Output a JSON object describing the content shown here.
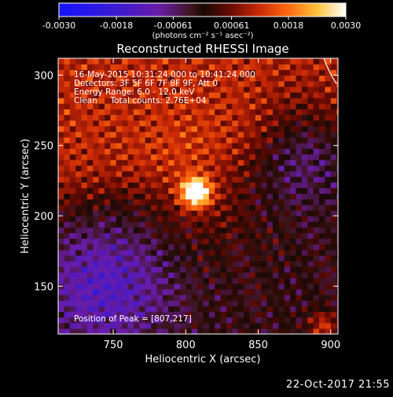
{
  "chart_data": {
    "type": "heatmap",
    "title": "Reconstructed RHESSI Image",
    "xlabel": "Heliocentric X (arcsec)",
    "ylabel": "Heliocentric Y (arcsec)",
    "xlim": [
      712,
      905
    ],
    "ylim": [
      116,
      312
    ],
    "x_ticks": [
      750,
      800,
      850,
      900
    ],
    "y_ticks": [
      150,
      200,
      250,
      300
    ],
    "colorbar": {
      "colormap": "RHESSI blue-purple-red-yellow-white",
      "range": [
        -0.003,
        0.003
      ],
      "tick_values": [
        -0.003,
        -0.0018,
        -0.00061,
        0.00061,
        0.0018,
        0.003
      ],
      "tick_labels": [
        "-0.0030",
        "-0.0018",
        "-0.00061",
        "0.00061",
        "0.0018",
        "0.0030"
      ],
      "unit_label": "(photons cm⁻² s⁻¹ asec⁻²)",
      "stops": [
        {
          "v": -0.003,
          "c": "#1414ff"
        },
        {
          "v": -0.0018,
          "c": "#3a1ad0"
        },
        {
          "v": -0.0009,
          "c": "#6a1ca8"
        },
        {
          "v": -0.0002,
          "c": "#3a1418"
        },
        {
          "v": 0.0,
          "c": "#1a0a06"
        },
        {
          "v": 0.0006,
          "c": "#6a0a04"
        },
        {
          "v": 0.0012,
          "c": "#cc2a06"
        },
        {
          "v": 0.0018,
          "c": "#ff6a10"
        },
        {
          "v": 0.0024,
          "c": "#ffc23a"
        },
        {
          "v": 0.003,
          "c": "#ffffff"
        }
      ]
    },
    "peak": [
      807,
      217
    ],
    "annotations": [
      "16-May-2015 10:31:24.000 to 10:41:24.000",
      "Detectors: 3F 5F 6F 7F 8F 9F, Att 0",
      "Energy Range: 6.0 - 12.0 keV",
      "Clean     Total counts: 2.76E+04",
      "Position of Peak = [807,217]"
    ]
  },
  "footer": {
    "date": "22-Oct-2017 21:55"
  }
}
